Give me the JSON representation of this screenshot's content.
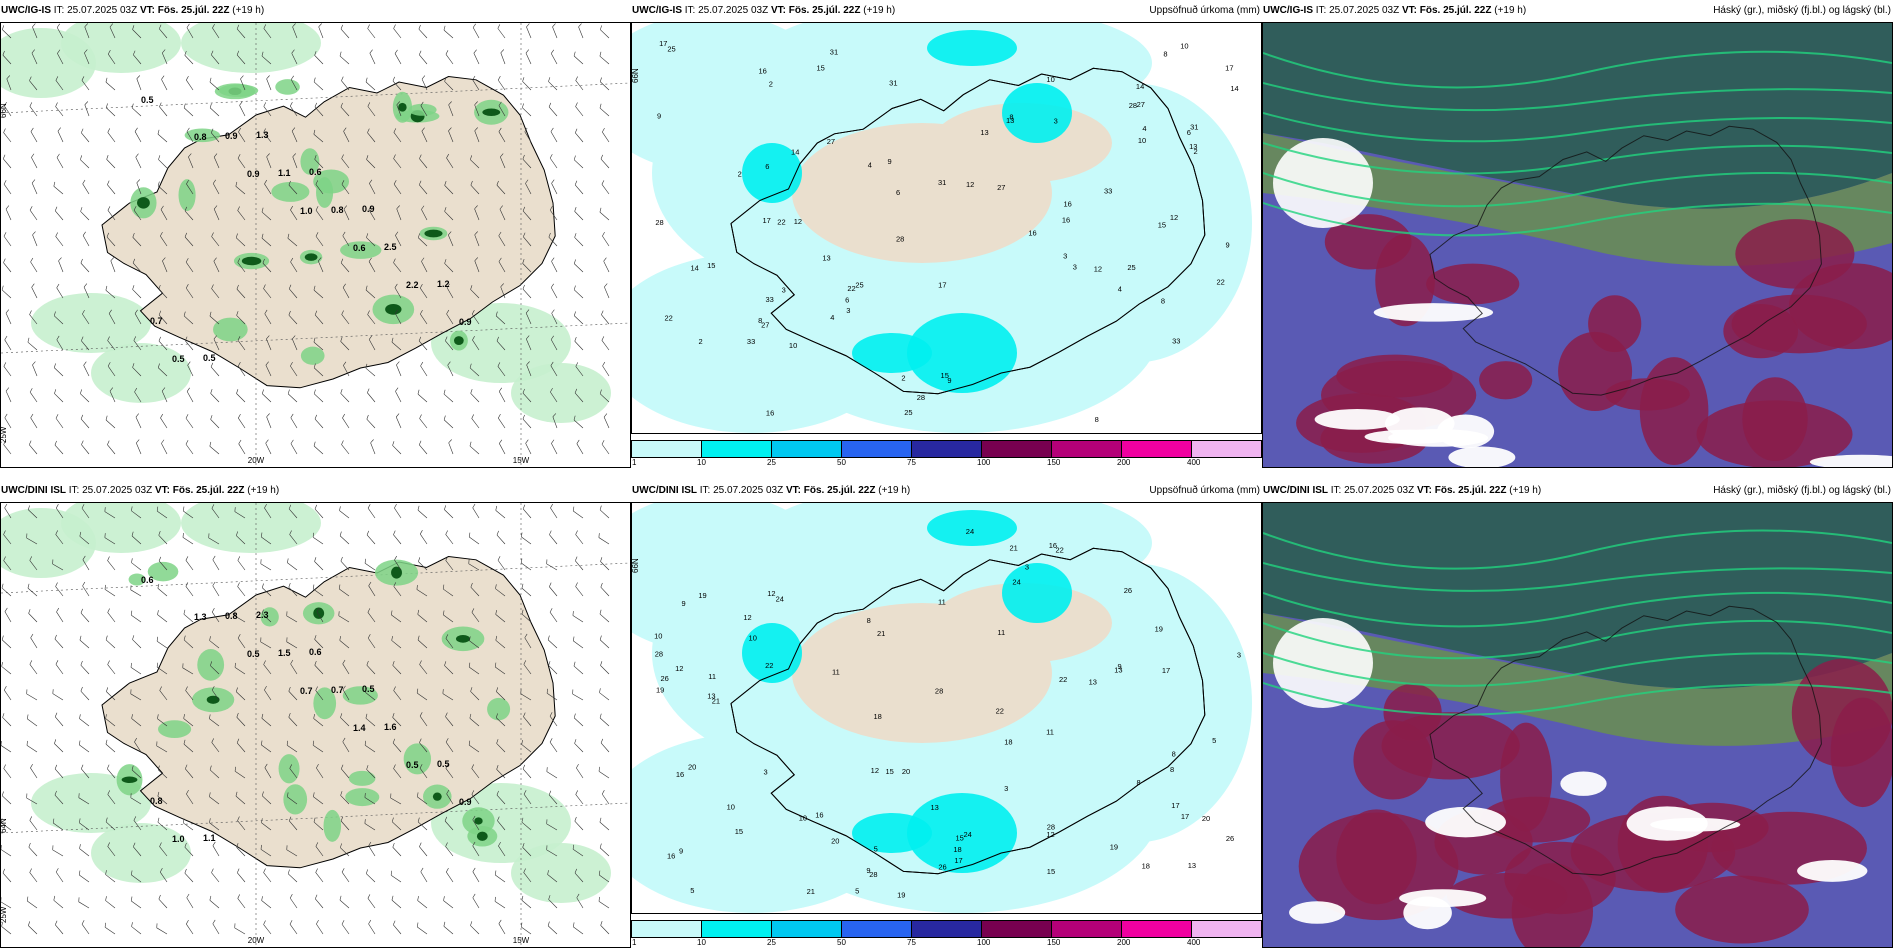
{
  "panels": [
    {
      "model": "UWC/IG-IS",
      "it_label": "IT:",
      "it": "25.07.2025 03Z",
      "vt_label": "VT:",
      "vt": "Fös. 25.júl. 22Z",
      "offset": "(+19 h)",
      "right": ""
    },
    {
      "model": "UWC/IG-IS",
      "it_label": "IT:",
      "it": "25.07.2025 03Z",
      "vt_label": "VT:",
      "vt": "Fös. 25.júl. 22Z",
      "offset": "(+19 h)",
      "right": "Uppsöfnuð úrkoma (mm)"
    },
    {
      "model": "UWC/IG-IS",
      "it_label": "IT:",
      "it": "25.07.2025 03Z",
      "vt_label": "VT:",
      "vt": "Fös. 25.júl. 22Z",
      "offset": "(+19 h)",
      "right": "Háský (gr.), miðský (fj.bl.) og lágský (bl.)"
    },
    {
      "model": "UWC/DINI ISL",
      "it_label": "IT:",
      "it": "25.07.2025 03Z",
      "vt_label": "VT:",
      "vt": "Fös. 25.júl. 22Z",
      "offset": "(+19 h)",
      "right": ""
    },
    {
      "model": "UWC/DINI ISL",
      "it_label": "IT:",
      "it": "25.07.2025 03Z",
      "vt_label": "VT:",
      "vt": "Fös. 25.júl. 22Z",
      "offset": "(+19 h)",
      "right": "Uppsöfnuð úrkoma (mm)"
    },
    {
      "model": "UWC/DINI ISL",
      "it_label": "IT:",
      "it": "25.07.2025 03Z",
      "vt_label": "VT:",
      "vt": "Fös. 25.júl. 22Z",
      "offset": "(+19 h)",
      "right": "Háský (gr.), miðský (fj.bl.) og lágský (bl.)"
    }
  ],
  "axis_labels": {
    "lon_20w": "20W",
    "lon_15w": "15W",
    "lat_66n": "66N",
    "lat_64n": "64N",
    "lon_25w": "25W"
  },
  "legend": {
    "labels": [
      "1",
      "10",
      "25",
      "50",
      "75",
      "100",
      "150",
      "200",
      "400"
    ],
    "colors": [
      "#c8fafa",
      "#00f0f0",
      "#00c8f0",
      "#2864f0",
      "#2828a0",
      "#780050",
      "#b40078",
      "#f000a0",
      "#f0b4f0"
    ]
  },
  "top_precip_values": [
    "0.5",
    "0.8",
    "0.9",
    "1.0",
    "0.6",
    "2.2",
    "0.9",
    "0.5",
    "0.9",
    "1.1",
    "0.8",
    "2.5",
    "1.2",
    "0.7",
    "0.5",
    "1.3",
    "0.6",
    "0.9"
  ],
  "bottom_precip_values": [
    "0.6",
    "1.3",
    "0.5",
    "0.7",
    "1.4",
    "0.5",
    "0.9",
    "1.0",
    "0.8",
    "1.5",
    "0.7",
    "1.6",
    "0.5",
    "0.8",
    "1.1",
    "2.3",
    "0.6",
    "0.5"
  ],
  "top_accum_values": [
    "2",
    "3",
    "8",
    "16",
    "33",
    "28",
    "31",
    "17",
    "13",
    "10",
    "15",
    "27",
    "14",
    "22",
    "25",
    "9",
    "12",
    "6",
    "4"
  ],
  "bottom_accum_values": [
    "11",
    "12",
    "13",
    "19",
    "16",
    "28",
    "10",
    "15",
    "24",
    "22",
    "20",
    "18",
    "26",
    "21",
    "17",
    "9",
    "8",
    "5",
    "3"
  ],
  "colors": {
    "land": "#eadfce",
    "precip_light": "#c6f0ce",
    "precip_med": "#7ed386",
    "precip_dark": "#0e5a1a",
    "accum_light": "#c8fafa",
    "accum_med": "#00f0f0",
    "cloud_high": "#2e5e56",
    "cloud_mid": "#8b1d4a",
    "cloud_low": "#5a5ab4",
    "cloud_edge": "#22d37e"
  }
}
